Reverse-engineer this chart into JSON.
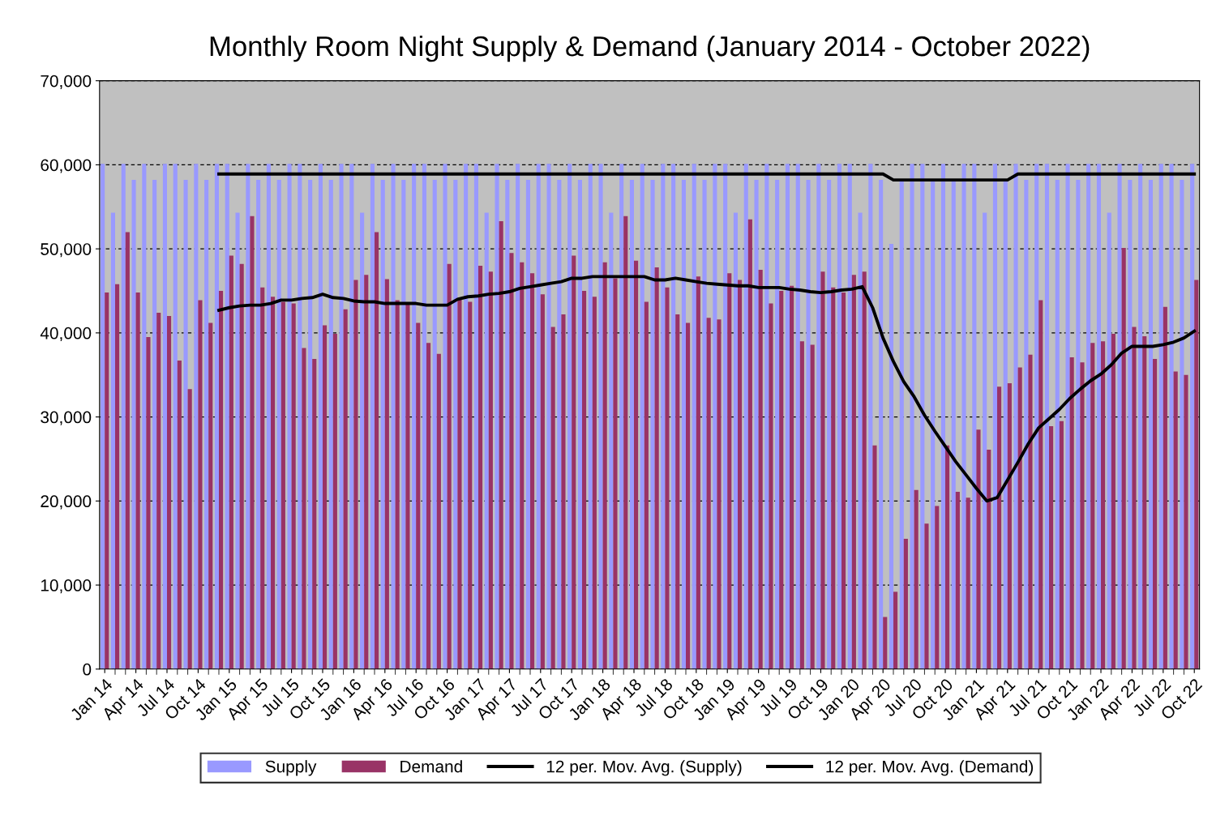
{
  "chart_data": {
    "type": "bar",
    "title": "Monthly Room Night Supply & Demand (January 2014 - October 2022)",
    "categories": [
      "Jan 14",
      null,
      null,
      "Apr 14",
      null,
      null,
      "Jul 14",
      null,
      null,
      "Oct 14",
      null,
      null,
      "Jan 15",
      null,
      null,
      "Apr 15",
      null,
      null,
      "Jul 15",
      null,
      null,
      "Oct 15",
      null,
      null,
      "Jan 16",
      null,
      null,
      "Apr 16",
      null,
      null,
      "Jul 16",
      null,
      null,
      "Oct 16",
      null,
      null,
      "Jan 17",
      null,
      null,
      "Apr 17",
      null,
      null,
      "Jul 17",
      null,
      null,
      "Oct 17",
      null,
      null,
      "Jan 18",
      null,
      null,
      "Apr 18",
      null,
      null,
      "Jul 18",
      null,
      null,
      "Oct 18",
      null,
      null,
      "Jan 19",
      null,
      null,
      "Apr 19",
      null,
      null,
      "Jul 19",
      null,
      null,
      "Oct 19",
      null,
      null,
      "Jan 20",
      null,
      null,
      "Apr 20",
      null,
      null,
      "Jul 20",
      null,
      null,
      "Oct 20",
      null,
      null,
      "Jan 21",
      null,
      null,
      "Apr 21",
      null,
      null,
      "Jul 21",
      null,
      null,
      "Oct 21",
      null,
      null,
      "Jan 22",
      null,
      null,
      "Apr 22",
      null,
      null,
      "Jul 22",
      null,
      null,
      "Oct 22"
    ],
    "series": [
      {
        "name": "Supply",
        "color": "#9999ff",
        "values": [
          60100,
          54300,
          60100,
          58200,
          60100,
          58200,
          60100,
          60100,
          58200,
          60100,
          58200,
          60100,
          60100,
          54300,
          60100,
          58200,
          60100,
          58200,
          60100,
          60100,
          58200,
          60100,
          58200,
          60100,
          60100,
          54300,
          60100,
          58200,
          60100,
          58200,
          60100,
          60100,
          58200,
          60100,
          58200,
          60100,
          60100,
          54300,
          60100,
          58200,
          60100,
          58200,
          60100,
          60100,
          58200,
          60100,
          58200,
          60100,
          60100,
          54300,
          60100,
          58200,
          60100,
          58200,
          60100,
          60100,
          58200,
          60100,
          58200,
          60100,
          60100,
          54300,
          60100,
          58200,
          60100,
          58200,
          60100,
          60100,
          58200,
          60100,
          58200,
          60100,
          60100,
          54300,
          60100,
          58200,
          50600,
          58200,
          60100,
          60100,
          58200,
          60100,
          58200,
          60100,
          60100,
          54300,
          60100,
          58200,
          60100,
          58200,
          60100,
          60100,
          58200,
          60100,
          58200,
          60100,
          60100,
          54300,
          60100,
          58200,
          60100,
          58200,
          60100,
          60100,
          58200,
          60100
        ]
      },
      {
        "name": "Demand",
        "color": "#993366",
        "values": [
          44800,
          45800,
          52000,
          44800,
          39500,
          42400,
          42000,
          36700,
          33300,
          43900,
          41200,
          45000,
          49200,
          48200,
          53900,
          45400,
          44300,
          43700,
          43500,
          38200,
          36900,
          40900,
          39900,
          42800,
          46300,
          46900,
          52000,
          46400,
          43900,
          43400,
          41200,
          38800,
          37500,
          48200,
          44000,
          43700,
          48000,
          47300,
          53300,
          49500,
          48400,
          47100,
          44600,
          40700,
          42200,
          49200,
          45000,
          44300,
          48400,
          46500,
          53900,
          48600,
          43700,
          47800,
          45400,
          42200,
          41200,
          46700,
          41800,
          41600,
          47100,
          46300,
          53500,
          47500,
          43500,
          45000,
          45600,
          39000,
          38600,
          47300,
          45400,
          44800,
          46900,
          47300,
          26600,
          6200,
          9200,
          15500,
          21300,
          17300,
          19400,
          26600,
          21100,
          20400,
          28500,
          26100,
          33600,
          34000,
          35900,
          37400,
          43900,
          28900,
          29500,
          37100,
          36500,
          38800,
          39000,
          39900,
          50100,
          40700,
          39600,
          36900,
          43100,
          35400,
          35000,
          46300
        ]
      },
      {
        "name": "12 per. Mov. Avg. (Supply)",
        "type": "line",
        "color": "#000000",
        "values": [
          null,
          null,
          null,
          null,
          null,
          null,
          null,
          null,
          null,
          null,
          null,
          58900,
          58900,
          58900,
          58900,
          58900,
          58900,
          58900,
          58900,
          58900,
          58900,
          58900,
          58900,
          58900,
          58900,
          58900,
          58900,
          58900,
          58900,
          58900,
          58900,
          58900,
          58900,
          58900,
          58900,
          58900,
          58900,
          58900,
          58900,
          58900,
          58900,
          58900,
          58900,
          58900,
          58900,
          58900,
          58900,
          58900,
          58900,
          58900,
          58900,
          58900,
          58900,
          58900,
          58900,
          58900,
          58900,
          58900,
          58900,
          58900,
          58900,
          58900,
          58900,
          58900,
          58900,
          58900,
          58900,
          58900,
          58900,
          58900,
          58900,
          58900,
          58900,
          58900,
          58900,
          58900,
          58200,
          58200,
          58200,
          58200,
          58200,
          58200,
          58200,
          58200,
          58200,
          58200,
          58200,
          58200,
          58900,
          58900,
          58900,
          58900,
          58900,
          58900,
          58900,
          58900,
          58900,
          58900,
          58900,
          58900,
          58900,
          58900,
          58900,
          58900,
          58900,
          58900
        ]
      },
      {
        "name": "12 per. Mov. Avg. (Demand)",
        "type": "line",
        "color": "#000000",
        "values": [
          null,
          null,
          null,
          null,
          null,
          null,
          null,
          null,
          null,
          null,
          null,
          42700,
          43000,
          43200,
          43300,
          43300,
          43500,
          43900,
          43900,
          44100,
          44200,
          44600,
          44200,
          44100,
          43800,
          43700,
          43700,
          43500,
          43500,
          43500,
          43500,
          43300,
          43300,
          43300,
          44000,
          44300,
          44400,
          44600,
          44700,
          44900,
          45300,
          45500,
          45700,
          45900,
          46100,
          46500,
          46500,
          46700,
          46700,
          46700,
          46700,
          46700,
          46700,
          46300,
          46300,
          46500,
          46300,
          46100,
          45900,
          45800,
          45700,
          45600,
          45600,
          45400,
          45400,
          45400,
          45200,
          45100,
          44900,
          44800,
          44900,
          45100,
          45200,
          45500,
          43000,
          39400,
          36600,
          34200,
          32400,
          30200,
          28300,
          26500,
          24700,
          23100,
          21500,
          20000,
          20400,
          22500,
          24600,
          26800,
          28700,
          29800,
          30900,
          32200,
          33300,
          34300,
          35100,
          36200,
          37600,
          38400,
          38400,
          38400,
          38600,
          38900,
          39400,
          40200
        ]
      }
    ],
    "ylim": [
      0,
      70000
    ],
    "yticks": [
      0,
      {
        "value": 10000,
        "label": "10,000"
      },
      {
        "value": 20000,
        "label": "20,000"
      },
      {
        "value": 30000,
        "label": "30,000"
      },
      {
        "value": 40000,
        "label": "40,000"
      },
      {
        "value": 50000,
        "label": "50,000"
      },
      {
        "value": 60000,
        "label": "60,000"
      },
      {
        "value": 70000,
        "label": "70,000"
      }
    ],
    "grid": "y",
    "legend": "bottom",
    "line_style": "solid",
    "marker": "none"
  }
}
